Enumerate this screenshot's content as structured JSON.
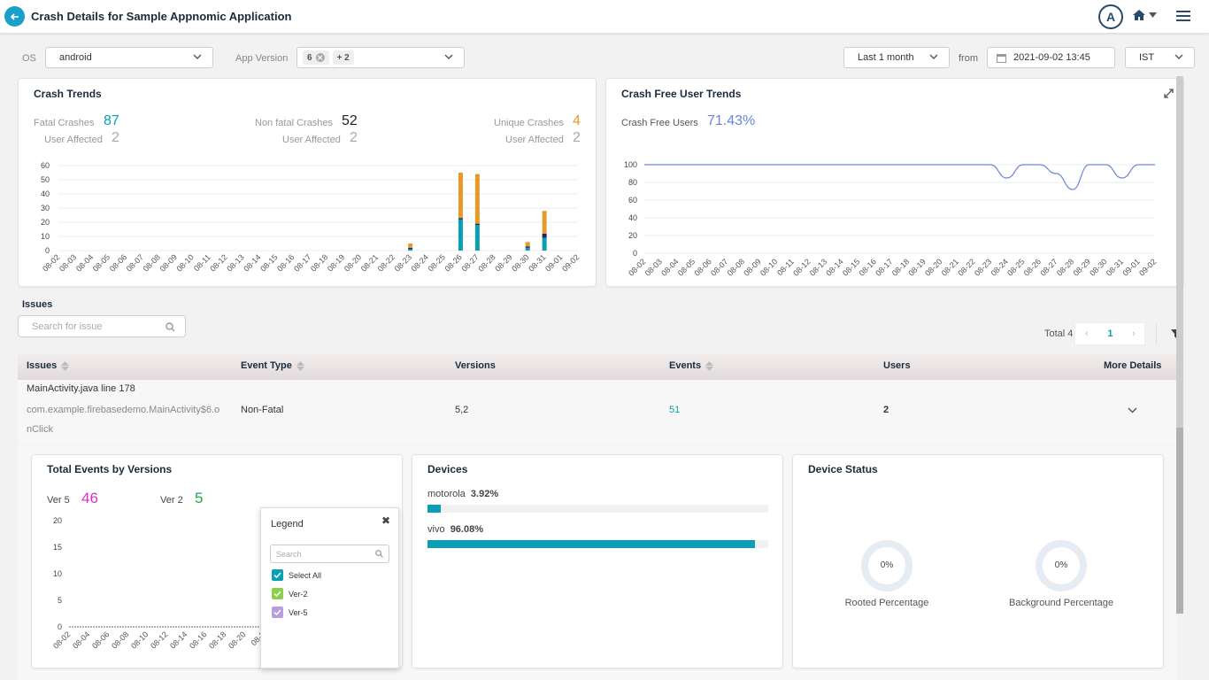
{
  "header": {
    "title": "Crash Details for Sample Appnomic Application",
    "avatar_initial": "A"
  },
  "filters": {
    "os_label": "OS",
    "os_value": "android",
    "app_version_label": "App Version",
    "app_version_chip": "6",
    "app_version_more": "+ 2",
    "range_value": "Last 1 month",
    "from_label": "from",
    "from_value": "2021-09-02 13:45",
    "tz_value": "IST"
  },
  "crash_trends": {
    "title": "Crash Trends",
    "fatal_label": "Fatal Crashes",
    "fatal_value": "87",
    "fatal_users_label": "User Affected",
    "fatal_users_value": "2",
    "nonfatal_label": "Non fatal Crashes",
    "nonfatal_value": "52",
    "nonfatal_users_label": "User Affected",
    "nonfatal_users_value": "2",
    "unique_label": "Unique Crashes",
    "unique_value": "4",
    "unique_users_label": "User Affected",
    "unique_users_value": "2",
    "colors": {
      "fatal": "#0a9fb4",
      "nonfatal": "#e59a2b",
      "unique": "#1e2a5a"
    }
  },
  "crash_free": {
    "title": "Crash Free User Trends",
    "label": "Crash Free Users",
    "value": "71.43%"
  },
  "issues": {
    "heading": "Issues",
    "search_placeholder": "Search for issue",
    "total_label": "Total 4",
    "page": "1",
    "columns": [
      "Issues",
      "Event Type",
      "Versions",
      "Events",
      "Users",
      "More Details"
    ],
    "row": {
      "title": "MainActivity.java line 178",
      "sub1": "com.example.firebasedemo.MainActivity$6.o",
      "sub2": "nClick",
      "event_type": "Non-Fatal",
      "versions": "5,2",
      "events": "51",
      "users": "2"
    }
  },
  "versions_card": {
    "title": "Total Events by Versions",
    "v5_label": "Ver 5",
    "v5_value": "46",
    "v2_label": "Ver 2",
    "v2_value": "5",
    "colors": {
      "v5": "#d42fcf",
      "v2": "#27a64a"
    }
  },
  "legend": {
    "title": "Legend",
    "search_placeholder": "Search",
    "items": [
      {
        "label": "Select All",
        "color": "#0a9fb4"
      },
      {
        "label": "Ver-2",
        "color": "#8bcf4b"
      },
      {
        "label": "Ver-5",
        "color": "#b99be0"
      }
    ]
  },
  "devices": {
    "title": "Devices",
    "items": [
      {
        "name": "motorola",
        "pct": "3.92%",
        "value": 3.92
      },
      {
        "name": "vivo",
        "pct": "96.08%",
        "value": 96.08
      }
    ]
  },
  "device_status": {
    "title": "Device Status",
    "rooted_value": "0%",
    "rooted_label": "Rooted Percentage",
    "background_value": "0%",
    "background_label": "Background Percentage"
  },
  "chart_data": [
    {
      "type": "bar",
      "title": "Crash Trends",
      "categories": [
        "08-02",
        "08-03",
        "08-04",
        "08-05",
        "08-06",
        "08-07",
        "08-08",
        "08-09",
        "08-10",
        "08-11",
        "08-12",
        "08-13",
        "08-14",
        "08-15",
        "08-16",
        "08-17",
        "08-18",
        "08-19",
        "08-20",
        "08-21",
        "08-22",
        "08-23",
        "08-24",
        "08-25",
        "08-26",
        "08-27",
        "08-28",
        "08-29",
        "08-30",
        "08-31",
        "09-01",
        "09-02"
      ],
      "series": [
        {
          "values": [
            0,
            0,
            0,
            0,
            0,
            0,
            0,
            0,
            0,
            0,
            0,
            0,
            0,
            0,
            0,
            0,
            0,
            0,
            0,
            0,
            0,
            1,
            0,
            0,
            22,
            18,
            0,
            0,
            2,
            9,
            0,
            0
          ]
        },
        {
          "values": [
            0,
            0,
            0,
            0,
            0,
            0,
            0,
            0,
            0,
            0,
            0,
            0,
            0,
            0,
            0,
            0,
            0,
            0,
            0,
            0,
            0,
            1,
            0,
            0,
            1,
            1,
            0,
            0,
            1,
            3,
            0,
            0
          ]
        },
        {
          "values": [
            0,
            0,
            0,
            0,
            0,
            0,
            0,
            0,
            0,
            0,
            0,
            0,
            0,
            0,
            0,
            0,
            0,
            0,
            0,
            0,
            0,
            3,
            0,
            0,
            32,
            35,
            0,
            0,
            3,
            16,
            0,
            0
          ]
        }
      ],
      "ylim": [
        0,
        60
      ],
      "yticks": [
        0,
        10,
        20,
        30,
        40,
        50,
        60
      ],
      "grid": true
    },
    {
      "type": "line",
      "title": "Crash Free User Trends",
      "categories": [
        "08-02",
        "08-03",
        "08-04",
        "08-05",
        "08-06",
        "08-07",
        "08-08",
        "08-09",
        "08-10",
        "08-11",
        "08-12",
        "08-13",
        "08-14",
        "08-15",
        "08-16",
        "08-17",
        "08-18",
        "08-19",
        "08-20",
        "08-21",
        "08-22",
        "08-23",
        "08-24",
        "08-25",
        "08-26",
        "08-27",
        "08-28",
        "08-29",
        "08-30",
        "08-31",
        "09-01",
        "09-02"
      ],
      "series": [
        {
          "values": [
            100,
            100,
            100,
            100,
            100,
            100,
            100,
            100,
            100,
            100,
            100,
            100,
            100,
            100,
            100,
            100,
            100,
            100,
            100,
            100,
            100,
            100,
            85,
            100,
            100,
            90,
            72,
            100,
            100,
            85,
            100,
            100
          ]
        }
      ],
      "ylim": [
        0,
        100
      ],
      "yticks": [
        0,
        20,
        40,
        60,
        80,
        100
      ],
      "grid": true,
      "color": "#6a86d9"
    },
    {
      "type": "line",
      "title": "Total Events by Versions",
      "categories": [
        "08-02",
        "08-04",
        "08-06",
        "08-08",
        "08-10",
        "08-12",
        "08-14",
        "08-16",
        "08-18",
        "08-20",
        "08-2"
      ],
      "series": [
        {
          "values": [
            0,
            0,
            0,
            0,
            0,
            0,
            0,
            0,
            0,
            0,
            0
          ]
        }
      ],
      "ylim": [
        0,
        20
      ],
      "yticks": [
        0,
        5,
        10,
        15,
        20
      ]
    }
  ]
}
